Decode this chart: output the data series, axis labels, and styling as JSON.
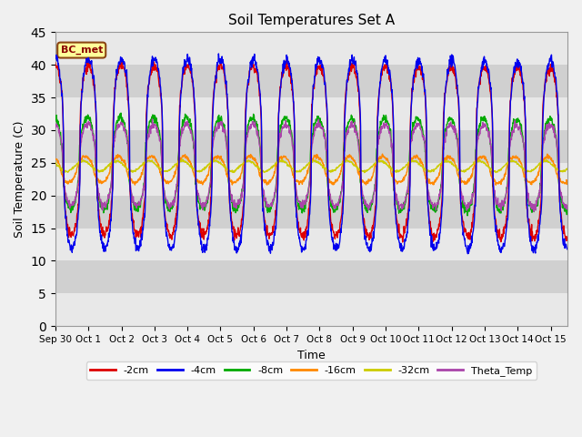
{
  "title": "Soil Temperatures Set A",
  "xlabel": "Time",
  "ylabel": "Soil Temperature (C)",
  "ylim": [
    0,
    45
  ],
  "yticks": [
    0,
    5,
    10,
    15,
    20,
    25,
    30,
    35,
    40,
    45
  ],
  "annotation_text": "BC_met",
  "annotation_bg": "#ffff99",
  "annotation_border": "#8B4513",
  "annotation_text_color": "#8B0000",
  "series_colors": {
    "2cm": "#dd0000",
    "4cm": "#0000ee",
    "8cm": "#00aa00",
    "16cm": "#ff8800",
    "32cm": "#cccc00",
    "Theta": "#aa44aa"
  },
  "legend_labels": [
    "-2cm",
    "-4cm",
    "-8cm",
    "-16cm",
    "-32cm",
    "Theta_Temp"
  ],
  "legend_colors": [
    "#dd0000",
    "#0000ee",
    "#00aa00",
    "#ff8800",
    "#cccc00",
    "#aa44aa"
  ],
  "n_days": 15.5,
  "n_pts": 1500,
  "base_temp": 23.0,
  "band_colors_even": "#e8e8e8",
  "band_colors_odd": "#d0d0d0",
  "fig_bg": "#f0f0f0"
}
